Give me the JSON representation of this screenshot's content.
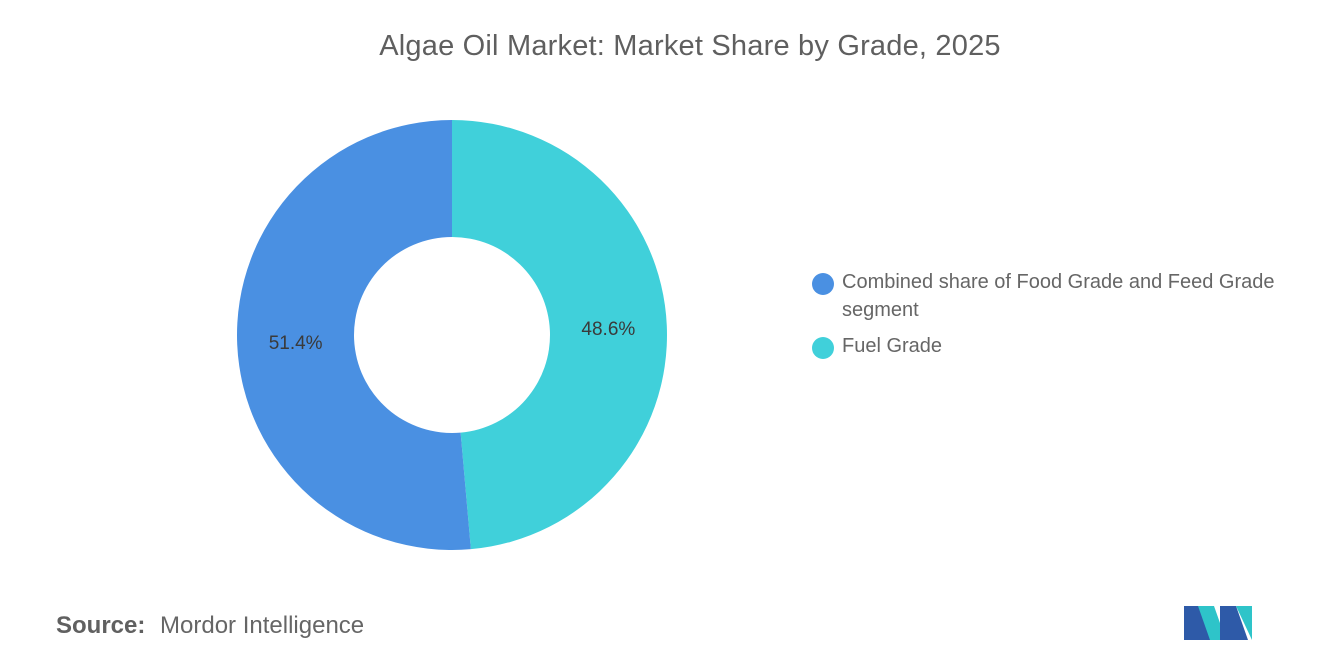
{
  "chart_data": {
    "type": "pie",
    "title": "Algae Oil Market: Market Share by Grade, 2025",
    "donut": true,
    "legend_position": "right",
    "slices": [
      {
        "label": "Combined share of Food Grade and Feed Grade segment",
        "value": 51.4,
        "display": "51.4%",
        "color": "#4a90e2"
      },
      {
        "label": "Fuel Grade",
        "value": 48.6,
        "display": "48.6%",
        "color": "#40d0da"
      }
    ]
  },
  "source": {
    "key": "Source:",
    "value": "Mordor Intelligence"
  },
  "logo": {
    "icon": "mordor-intelligence-logo",
    "colors": [
      "#2e5aa8",
      "#2ec4c9"
    ]
  }
}
